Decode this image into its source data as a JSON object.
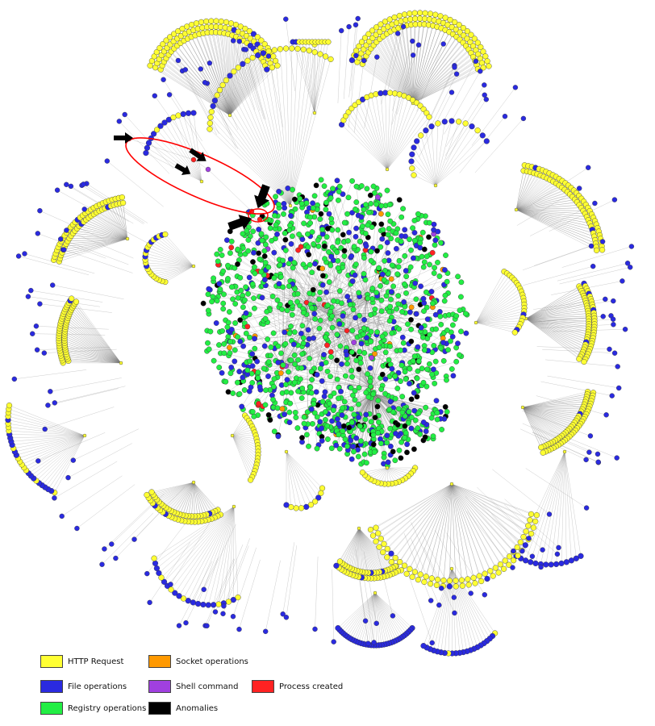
{
  "colors": {
    "http": "#ffff33",
    "file": "#2a2ae0",
    "registry": "#22ee44",
    "socket": "#ff9900",
    "shell": "#a040e0",
    "process": "#ff2222",
    "anomaly": "#000000",
    "edge": "#7a7a7a",
    "highlight": "#ff0000"
  },
  "legend": [
    {
      "label": "HTTP Request",
      "color": "#ffff33"
    },
    {
      "label": "Socket operations",
      "color": "#ff9900"
    },
    {
      "label": "File operations",
      "color": "#2a2ae0"
    },
    {
      "label": "Shell command",
      "color": "#a040e0"
    },
    {
      "label": "Process created",
      "color": "#ff2222"
    },
    {
      "label": "Registry operations",
      "color": "#22ee44"
    },
    {
      "label": "Anomalies",
      "color": "#000000"
    }
  ]
}
